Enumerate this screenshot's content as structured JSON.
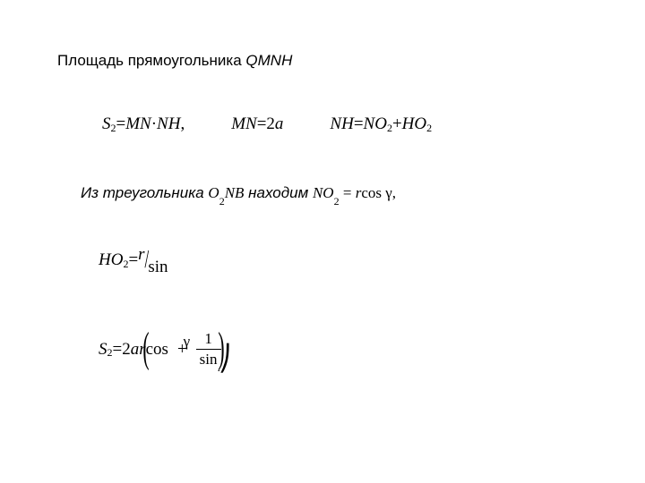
{
  "title": {
    "prefix": "Площадь прямоугольника ",
    "var": "QMNH"
  },
  "eqrow": {
    "eq1": {
      "lhs_var": "S",
      "lhs_sub": "2",
      "eq": " = ",
      "rhs_a": "MN",
      "dot": " · ",
      "rhs_b": "NH",
      "comma": " ,"
    },
    "eq2": {
      "lhs": "MN",
      "eq": " = ",
      "rhs_num": "2",
      "rhs_var": "a"
    },
    "eq3": {
      "lhs": "NH",
      "eq": " = ",
      "rhs_a_var": "NO",
      "rhs_a_sub": "2",
      "plus": " + ",
      "rhs_b_var": "HO",
      "rhs_b_sub": "2"
    }
  },
  "subline": {
    "prefix": "Из треугольника ",
    "tri_a": "O",
    "tri_sub": "2",
    "tri_b": "NB",
    "mid": " находим ",
    "res_var": "NO",
    "res_sub": "2",
    "eq": " = ",
    "rhs_var": "r",
    "rhs_fn": "cos",
    "gamma": " γ",
    "comma": ","
  },
  "ho2": {
    "lhs_var": "HO",
    "lhs_sub": "2",
    "eq": " = ",
    "num": "r",
    "den": "sin"
  },
  "s2": {
    "lhs_var": "S",
    "lhs_sub": "2",
    "eq": " = ",
    "coef_num": "2",
    "coef_var": "ar",
    "cos": "cos",
    "plus": "+",
    "frac_num": "1",
    "frac_den": "sin",
    "gamma": "γ",
    "dot": ".",
    "bracket": "⎠"
  },
  "style": {
    "background": "#ffffff",
    "text_color": "#000000",
    "base_fontsize": 17,
    "math_fontsize": 19
  }
}
